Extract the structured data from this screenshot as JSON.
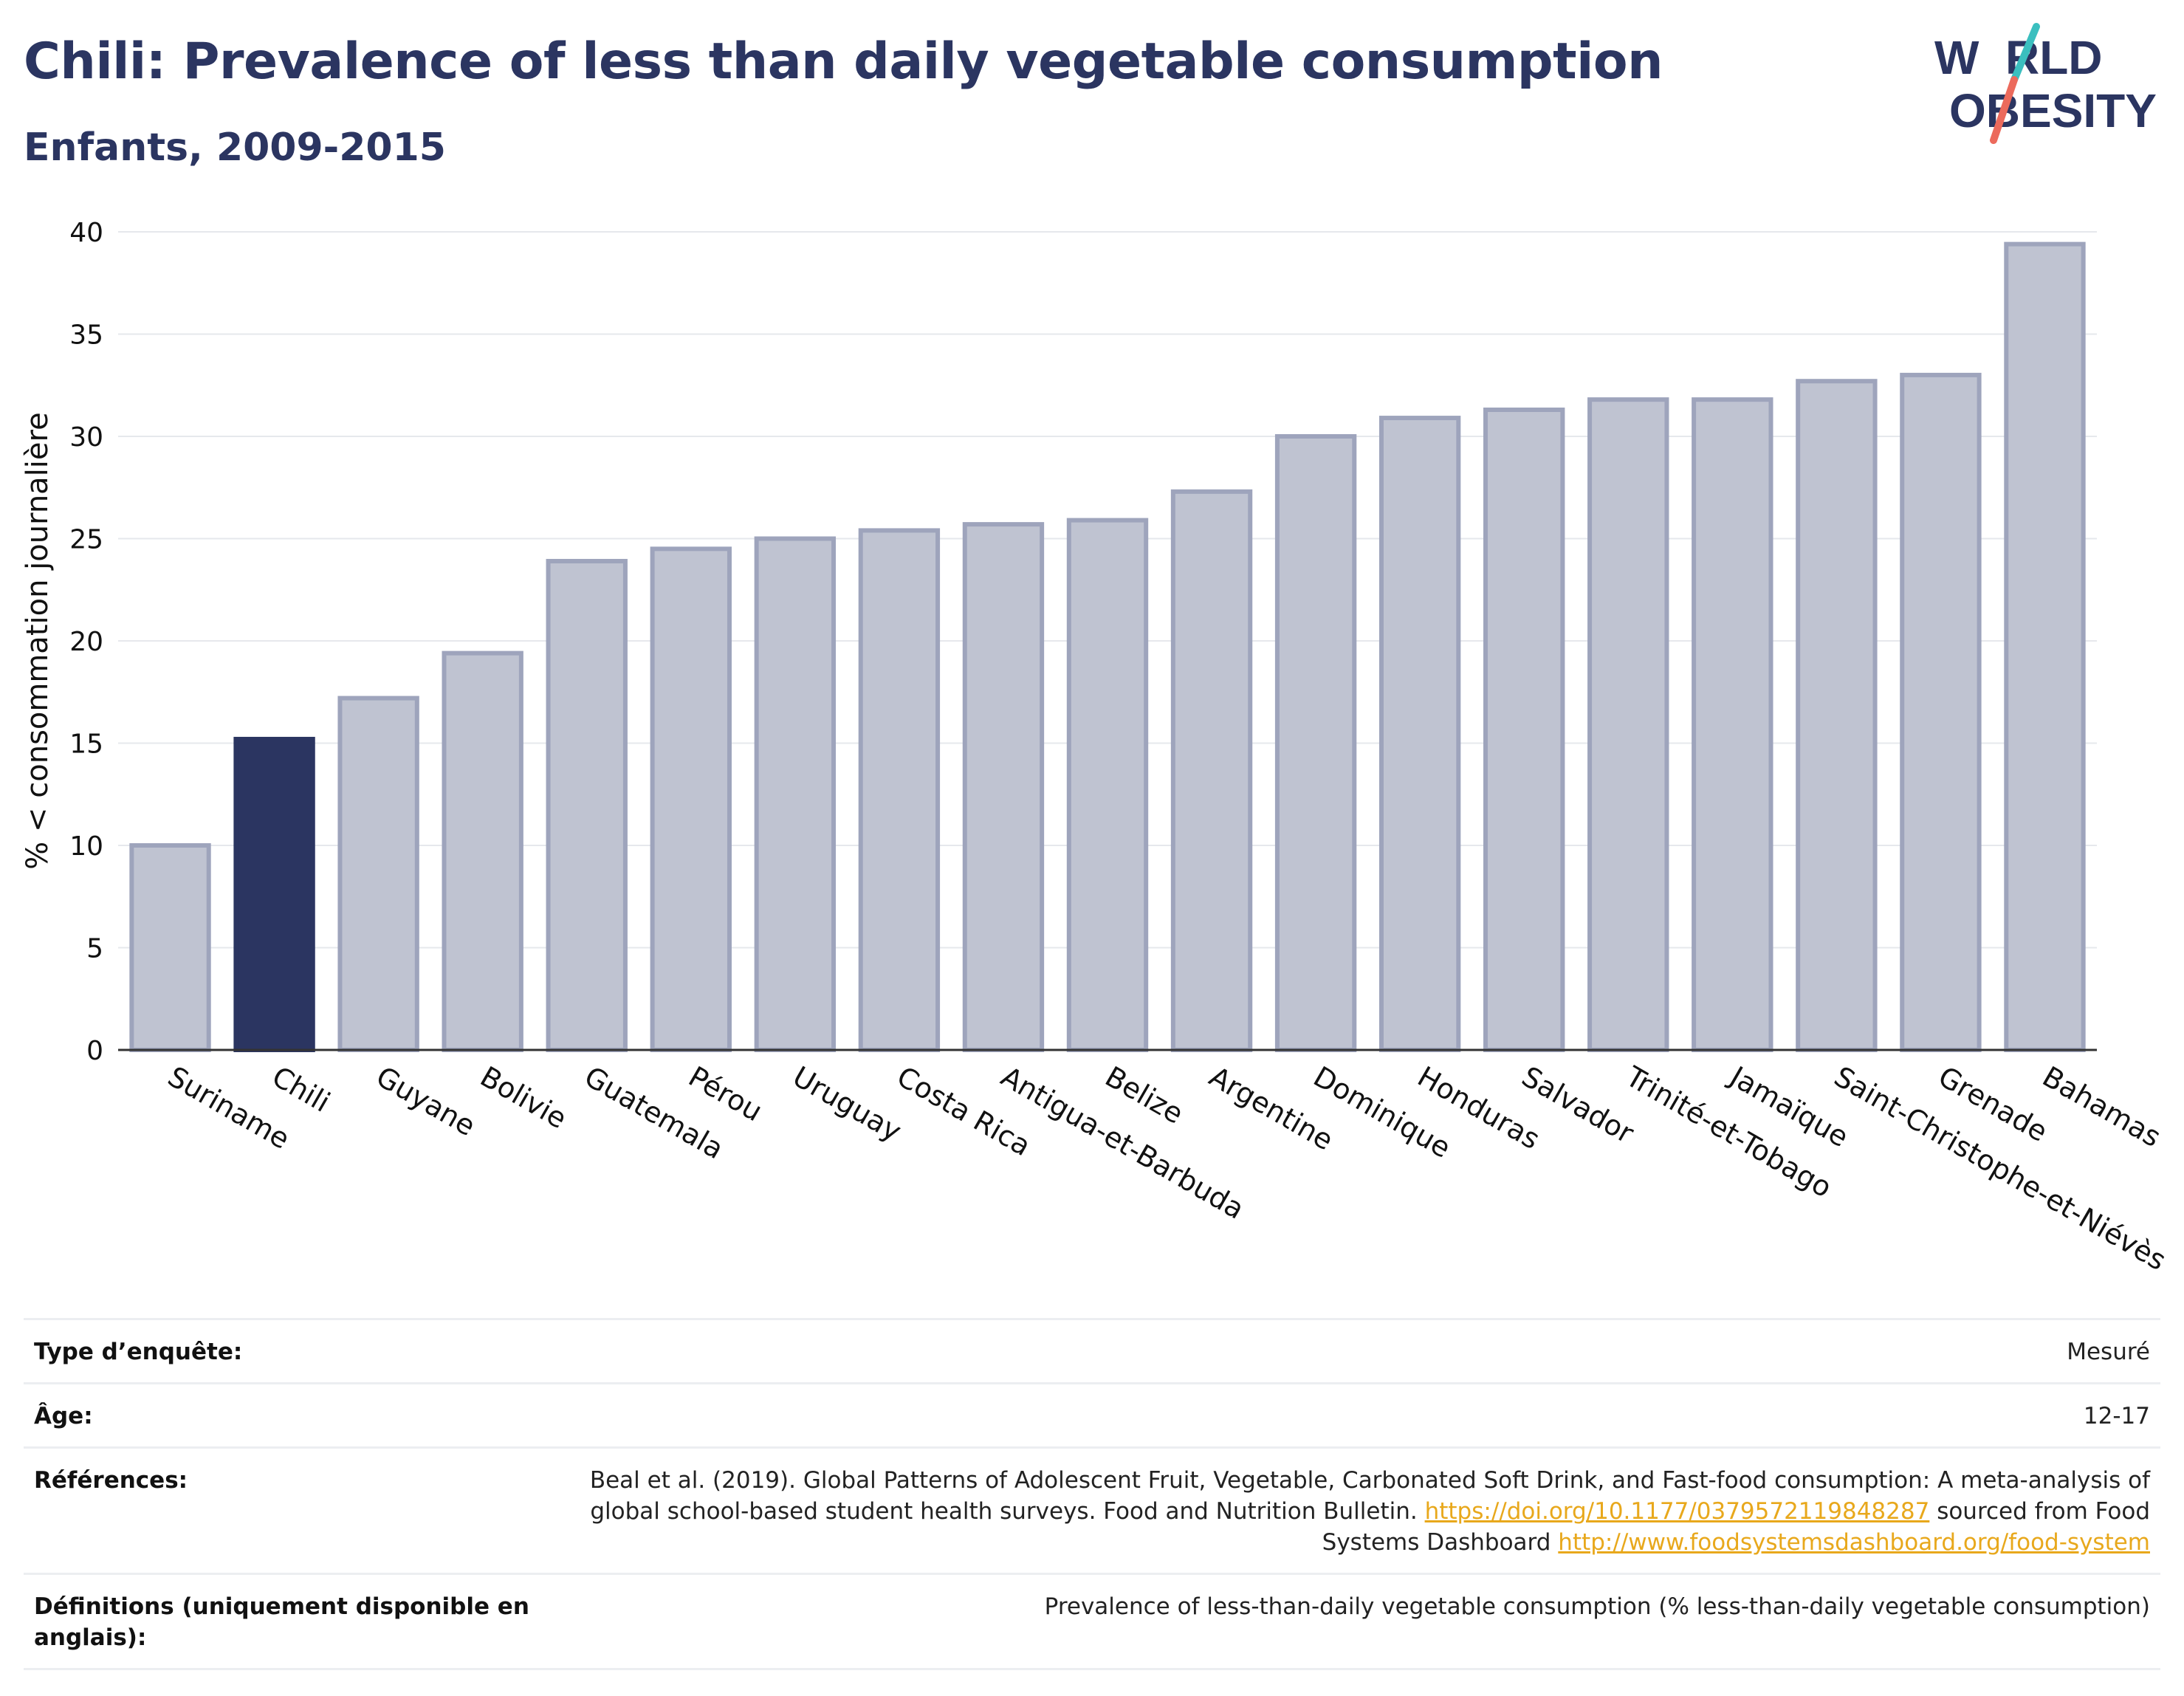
{
  "title": "Chili: Prevalence of less than daily vegetable consumption",
  "subtitle": "Enfants, 2009-2015",
  "logo": {
    "line1": "W  RLD",
    "line2": "OBESITY",
    "slash_colors": [
      "#3bbfbf",
      "#ec6a5c"
    ]
  },
  "colors": {
    "highlight": "#2b3561",
    "bar": "#bfc3d1",
    "bar_border": "#9ea4bc",
    "axis": "#333333",
    "grid": "#e6e8ec"
  },
  "chart_data": {
    "type": "bar",
    "title": "Chili: Prevalence of less than daily vegetable consumption",
    "subtitle": "Enfants, 2009-2015",
    "xlabel": "",
    "ylabel": "% < consommation journalière",
    "ylim": [
      0,
      40
    ],
    "yticks": [
      0,
      5,
      10,
      15,
      20,
      25,
      30,
      35,
      40
    ],
    "grid": true,
    "highlight": "Chili",
    "categories": [
      "Suriname",
      "Chili",
      "Guyane",
      "Bolivie",
      "Guatemala",
      "Pérou",
      "Uruguay",
      "Costa Rica",
      "Antigua-et-Barbuda",
      "Belize",
      "Argentine",
      "Dominique",
      "Honduras",
      "Salvador",
      "Trinité-et-Tobago",
      "Jamaïque",
      "Saint-Christophe-et-Niévès",
      "Grenade",
      "Bahamas"
    ],
    "values": [
      10.0,
      15.2,
      17.2,
      19.4,
      23.9,
      24.5,
      25.0,
      25.4,
      25.7,
      25.9,
      27.3,
      30.0,
      30.9,
      31.3,
      31.8,
      31.8,
      32.7,
      33.0,
      39.4
    ]
  },
  "meta": {
    "survey_type_label": "Type d’enquête:",
    "survey_type_value": "Mesuré",
    "age_label": "Âge:",
    "age_value": "12-17",
    "references_label": "Références:",
    "references_text1": "Beal et al. (2019). Global Patterns of Adolescent Fruit, Vegetable, Carbonated Soft Drink, and Fast-food consumption: A meta-analysis of global school-based student health surveys. Food and Nutrition Bulletin.",
    "references_link1": "https://doi.org/10.1177/0379572119848287",
    "references_text2": "sourced from Food Systems Dashboard",
    "references_link2": "http://www.foodsystemsdashboard.org/food-system",
    "definitions_label": "Définitions (uniquement disponible en anglais):",
    "definitions_value": "Prevalence of less-than-daily vegetable consumption (% less-than-daily vegetable consumption)"
  }
}
